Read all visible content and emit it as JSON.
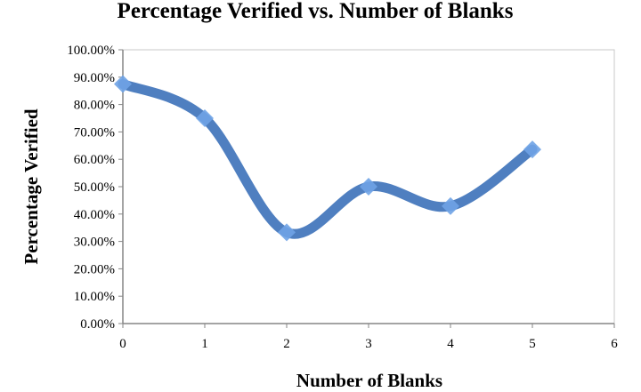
{
  "chart_data": {
    "type": "line",
    "title": "Percentage Verified vs. Number of Blanks",
    "xlabel": "Number of Blanks",
    "ylabel": "Percentage Verified",
    "xlim": [
      0,
      6
    ],
    "ylim": [
      0,
      100
    ],
    "x_ticks": [
      "0",
      "1",
      "2",
      "3",
      "4",
      "5",
      "6"
    ],
    "y_ticks": [
      "0.00%",
      "10.00%",
      "20.00%",
      "30.00%",
      "40.00%",
      "50.00%",
      "60.00%",
      "70.00%",
      "80.00%",
      "90.00%",
      "100.00%"
    ],
    "grid": false,
    "legend": "none",
    "smooth": true,
    "series": [
      {
        "x": [
          0,
          1,
          2,
          3,
          4,
          5
        ],
        "y": [
          87.5,
          75.0,
          33.3,
          50.0,
          42.9,
          63.6
        ]
      }
    ],
    "colors": {
      "line": "#4f7fc0",
      "marker": "#6fa3e6",
      "axis": "#868686",
      "plot_border": "#c8c8c8"
    }
  }
}
